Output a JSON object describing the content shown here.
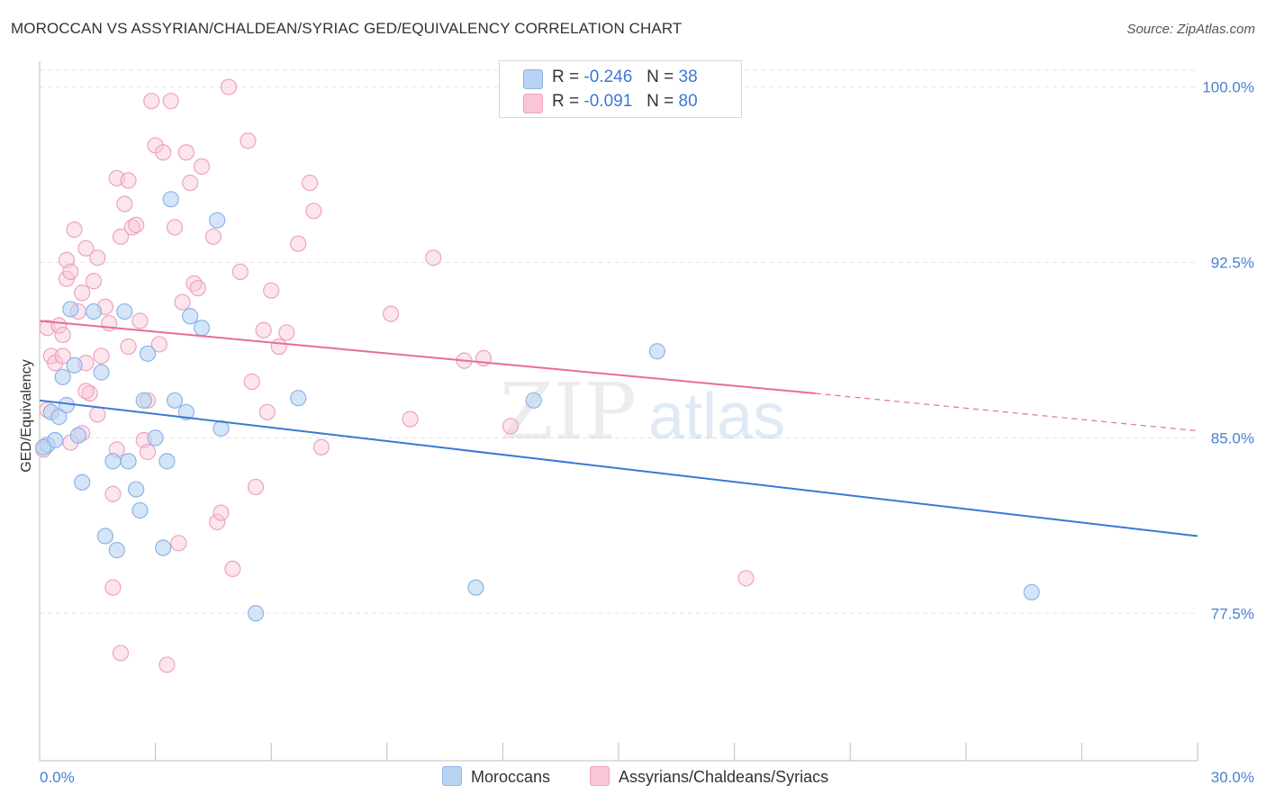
{
  "title": "MOROCCAN VS ASSYRIAN/CHALDEAN/SYRIAC GED/EQUIVALENCY CORRELATION CHART",
  "source": "Source: ZipAtlas.com",
  "watermark": {
    "zip": "ZIP",
    "atlas": "atlas"
  },
  "legend": {
    "r_label": "R =",
    "n_label": "N =",
    "rows": [
      {
        "r": "-0.246",
        "n": "38"
      },
      {
        "r": "-0.091",
        "n": "80"
      }
    ]
  },
  "bottom_legend": {
    "moroccans": "Moroccans",
    "assyrians": "Assyrians/Chaldeans/Syriacs"
  },
  "colors": {
    "moroccan_fill": "#b9d3f3",
    "moroccan_stroke": "#8cb4e8",
    "moroccan_line": "#3a78d4",
    "assyrian_fill": "#f8c6d6",
    "assyrian_stroke": "#eea3bd",
    "assyrian_line": "#e76c96",
    "tick_text": "#4a7fd0",
    "grid": "#e3e3e3"
  },
  "chart_data": {
    "type": "scatter",
    "title": "MOROCCAN VS ASSYRIAN/CHALDEAN/SYRIAC GED/EQUIVALENCY CORRELATION CHART",
    "xlabel": "",
    "ylabel": "GED/Equivalency",
    "xlim": [
      0,
      30
    ],
    "ylim": [
      71.2,
      101.1
    ],
    "x_tick_labels": [
      "0.0%",
      "30.0%"
    ],
    "y_ticks": [
      77.5,
      85.0,
      92.5,
      100.0
    ],
    "y_tick_labels": [
      "77.5%",
      "85.0%",
      "92.5%",
      "100.0%"
    ],
    "grid": "horizontal dashed",
    "legend_position": "top-center",
    "series": [
      {
        "name": "Moroccans",
        "r": -0.246,
        "n": 38,
        "trend": {
          "x": [
            0,
            30
          ],
          "y": [
            86.6,
            80.8
          ]
        },
        "points": [
          [
            0.2,
            84.7
          ],
          [
            0.3,
            86.1
          ],
          [
            0.4,
            84.9
          ],
          [
            0.5,
            85.9
          ],
          [
            0.6,
            87.6
          ],
          [
            0.7,
            86.4
          ],
          [
            0.9,
            88.1
          ],
          [
            1.0,
            85.1
          ],
          [
            1.1,
            83.1
          ],
          [
            1.4,
            90.4
          ],
          [
            1.6,
            87.8
          ],
          [
            1.7,
            80.8
          ],
          [
            1.9,
            84.0
          ],
          [
            2.0,
            80.2
          ],
          [
            2.2,
            90.4
          ],
          [
            2.3,
            84.0
          ],
          [
            2.5,
            82.8
          ],
          [
            2.6,
            81.9
          ],
          [
            2.8,
            88.6
          ],
          [
            2.7,
            86.6
          ],
          [
            3.0,
            85.0
          ],
          [
            3.2,
            80.3
          ],
          [
            3.3,
            84.0
          ],
          [
            3.4,
            95.2
          ],
          [
            3.5,
            86.6
          ],
          [
            3.8,
            86.1
          ],
          [
            3.9,
            90.2
          ],
          [
            4.2,
            89.7
          ],
          [
            4.6,
            94.3
          ],
          [
            4.7,
            85.4
          ],
          [
            5.6,
            77.5
          ],
          [
            6.7,
            86.7
          ],
          [
            11.3,
            78.6
          ],
          [
            12.8,
            86.6
          ],
          [
            16.0,
            88.7
          ],
          [
            25.7,
            78.4
          ],
          [
            0.8,
            90.5
          ],
          [
            0.1,
            84.6
          ]
        ]
      },
      {
        "name": "Assyrians/Chaldeans/Syriacs",
        "r": -0.091,
        "n": 80,
        "trend": {
          "x": [
            0,
            20.1
          ],
          "y": [
            90.0,
            86.9
          ]
        },
        "trend_dashed": {
          "x": [
            20.1,
            30
          ],
          "y": [
            86.9,
            85.3
          ]
        },
        "points": [
          [
            0.1,
            84.5
          ],
          [
            0.2,
            86.2
          ],
          [
            0.2,
            89.7
          ],
          [
            0.3,
            88.5
          ],
          [
            0.4,
            88.2
          ],
          [
            0.5,
            89.8
          ],
          [
            0.6,
            88.5
          ],
          [
            0.7,
            92.6
          ],
          [
            0.7,
            91.8
          ],
          [
            0.8,
            92.1
          ],
          [
            0.8,
            84.8
          ],
          [
            0.9,
            93.9
          ],
          [
            1.0,
            90.4
          ],
          [
            1.1,
            85.2
          ],
          [
            1.2,
            93.1
          ],
          [
            1.2,
            88.2
          ],
          [
            1.3,
            86.9
          ],
          [
            1.4,
            91.7
          ],
          [
            1.5,
            92.7
          ],
          [
            1.6,
            88.5
          ],
          [
            1.7,
            90.6
          ],
          [
            1.8,
            89.9
          ],
          [
            1.9,
            82.6
          ],
          [
            1.9,
            78.6
          ],
          [
            2.0,
            96.1
          ],
          [
            2.0,
            84.5
          ],
          [
            2.1,
            75.8
          ],
          [
            2.1,
            93.6
          ],
          [
            2.2,
            95.0
          ],
          [
            2.3,
            96.0
          ],
          [
            2.4,
            94.0
          ],
          [
            2.5,
            94.1
          ],
          [
            2.6,
            90.0
          ],
          [
            2.7,
            84.9
          ],
          [
            2.8,
            84.4
          ],
          [
            2.8,
            86.6
          ],
          [
            2.9,
            99.4
          ],
          [
            3.0,
            97.5
          ],
          [
            3.1,
            89.0
          ],
          [
            3.2,
            97.2
          ],
          [
            3.3,
            75.3
          ],
          [
            3.4,
            99.4
          ],
          [
            3.5,
            94.0
          ],
          [
            3.6,
            80.5
          ],
          [
            3.7,
            90.8
          ],
          [
            3.8,
            97.2
          ],
          [
            3.9,
            95.9
          ],
          [
            4.0,
            91.6
          ],
          [
            4.1,
            91.4
          ],
          [
            4.2,
            96.6
          ],
          [
            4.5,
            93.6
          ],
          [
            4.6,
            81.4
          ],
          [
            4.7,
            81.8
          ],
          [
            4.9,
            100.0
          ],
          [
            5.0,
            79.4
          ],
          [
            5.2,
            92.1
          ],
          [
            5.4,
            97.7
          ],
          [
            5.5,
            87.4
          ],
          [
            5.6,
            82.9
          ],
          [
            5.8,
            89.6
          ],
          [
            5.9,
            86.1
          ],
          [
            6.0,
            91.3
          ],
          [
            6.2,
            88.9
          ],
          [
            6.4,
            89.5
          ],
          [
            6.7,
            93.3
          ],
          [
            7.0,
            95.9
          ],
          [
            7.1,
            94.7
          ],
          [
            7.3,
            84.6
          ],
          [
            9.1,
            90.3
          ],
          [
            9.6,
            85.8
          ],
          [
            10.2,
            92.7
          ],
          [
            11.0,
            88.3
          ],
          [
            11.5,
            88.4
          ],
          [
            12.2,
            85.5
          ],
          [
            18.3,
            79.0
          ],
          [
            1.2,
            87.0
          ],
          [
            0.6,
            89.4
          ],
          [
            1.5,
            86.0
          ],
          [
            2.3,
            88.9
          ],
          [
            1.1,
            91.2
          ]
        ]
      }
    ]
  }
}
